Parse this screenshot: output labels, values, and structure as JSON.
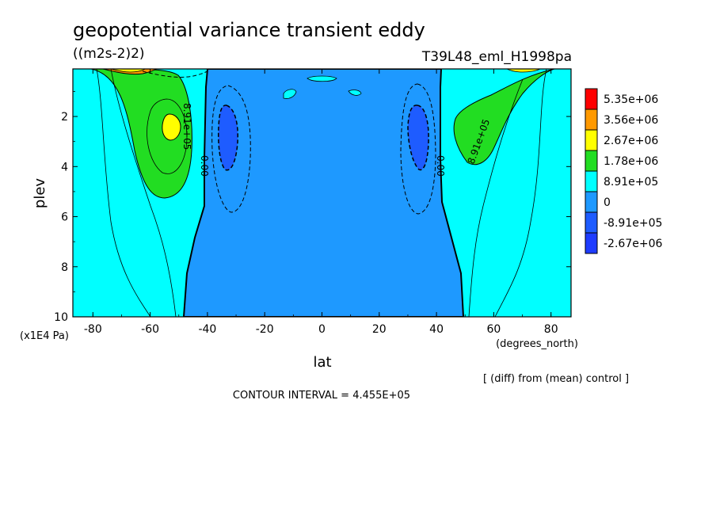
{
  "chart_data": {
    "type": "heatmap",
    "title": "geopotential variance transient eddy",
    "units": "((m2s-2)2)",
    "run_label": "T39L48_eml_H1998pa",
    "xlabel": "lat",
    "x_units": "(degrees_north)",
    "ylabel": "plev",
    "y_units": "(x1E4 Pa)",
    "xlim": [
      -87,
      87
    ],
    "ylim": [
      10,
      0.1
    ],
    "y_inverted": true,
    "x_ticks": [
      "-80",
      "-60",
      "-40",
      "-20",
      "0",
      "20",
      "40",
      "60",
      "80"
    ],
    "x_tick_values": [
      -80,
      -60,
      -40,
      -20,
      0,
      20,
      40,
      60,
      80
    ],
    "y_ticks": [
      "2",
      "4",
      "6",
      "8",
      "10"
    ],
    "y_tick_values": [
      2,
      4,
      6,
      8,
      10
    ],
    "note": "[ (diff) from (mean) control ]",
    "contour_interval_text": "CONTOUR INTERVAL = 4.455E+05",
    "contour_labels": [
      "8.91e+05",
      "0.00",
      "0.00",
      "8.91e+05"
    ],
    "legend": {
      "placement": "right",
      "levels": [
        "5.35e+06",
        "3.56e+06",
        "2.67e+06",
        "1.78e+06",
        "8.91e+05",
        "0",
        "-8.91e+05",
        "-2.67e+06"
      ],
      "colors": [
        "#ff0000",
        "#ff9900",
        "#ffff00",
        "#22dd22",
        "#00ffff",
        "#1e99ff",
        "#1e5cff",
        "#1e3cff"
      ]
    },
    "regions": [
      {
        "name": "negative-center",
        "value_range": "-8.91e+05 to 0",
        "lat": [
          -50,
          50
        ]
      },
      {
        "name": "negative-core-south",
        "value_range": "< -8.91e+05",
        "lat": [
          -36,
          -30
        ],
        "plev": [
          1.6,
          4.3
        ]
      },
      {
        "name": "negative-core-north",
        "value_range": "< -8.91e+05",
        "lat": [
          30,
          36
        ],
        "plev": [
          1.6,
          4.3
        ]
      },
      {
        "name": "positive-south",
        "value_range": "8.91e+05 to 1.78e+06",
        "lat": [
          -80,
          -45
        ],
        "plev": [
          0.1,
          5.3
        ]
      },
      {
        "name": "positive-max-south",
        "value_range": "1.78e+06 to 2.67e+06",
        "lat": [
          -56,
          -51
        ],
        "plev": [
          1.9,
          2.9
        ]
      },
      {
        "name": "positive-north",
        "value_range": "8.91e+05 to 1.78e+06",
        "lat": [
          52,
          80
        ],
        "plev": [
          0.1,
          3.9
        ]
      }
    ]
  }
}
